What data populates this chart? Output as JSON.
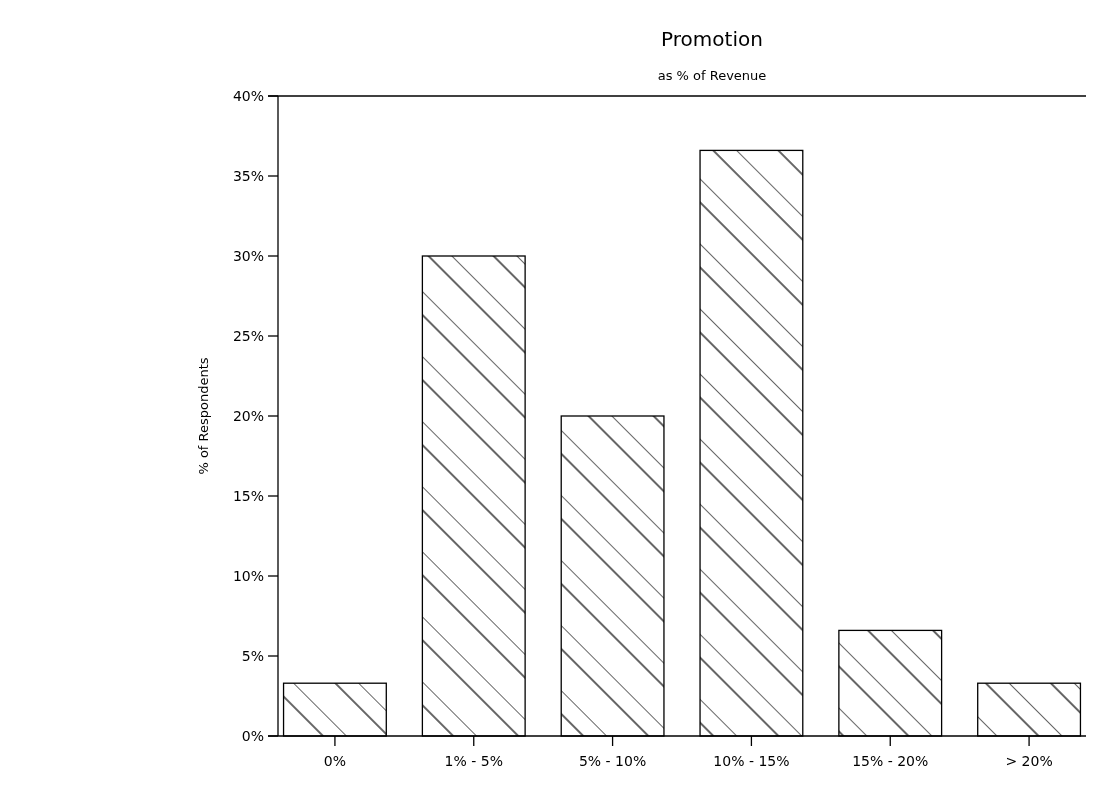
{
  "chart_data": {
    "type": "bar",
    "title": "Promotion",
    "subtitle": "as % of Revenue",
    "ylabel": "% of Respondents",
    "categories": [
      "0%",
      "1% - 5%",
      "5% - 10%",
      "10% - 15%",
      "15% - 20%",
      "> 20%"
    ],
    "values": [
      3.3,
      30,
      20,
      36.6,
      6.6,
      3.3
    ],
    "color": "#000000",
    "ylim": [
      0,
      40
    ],
    "yticks": [
      {
        "value": 0,
        "label": "0%"
      },
      {
        "value": 5,
        "label": "5%"
      },
      {
        "value": 10,
        "label": "10%"
      },
      {
        "value": 15,
        "label": "15%"
      },
      {
        "value": 20,
        "label": "20%"
      },
      {
        "value": 25,
        "label": "25%"
      },
      {
        "value": 30,
        "label": "30%"
      },
      {
        "value": 35,
        "label": "35%"
      },
      {
        "value": 40,
        "label": "40%"
      }
    ],
    "grid": false
  }
}
